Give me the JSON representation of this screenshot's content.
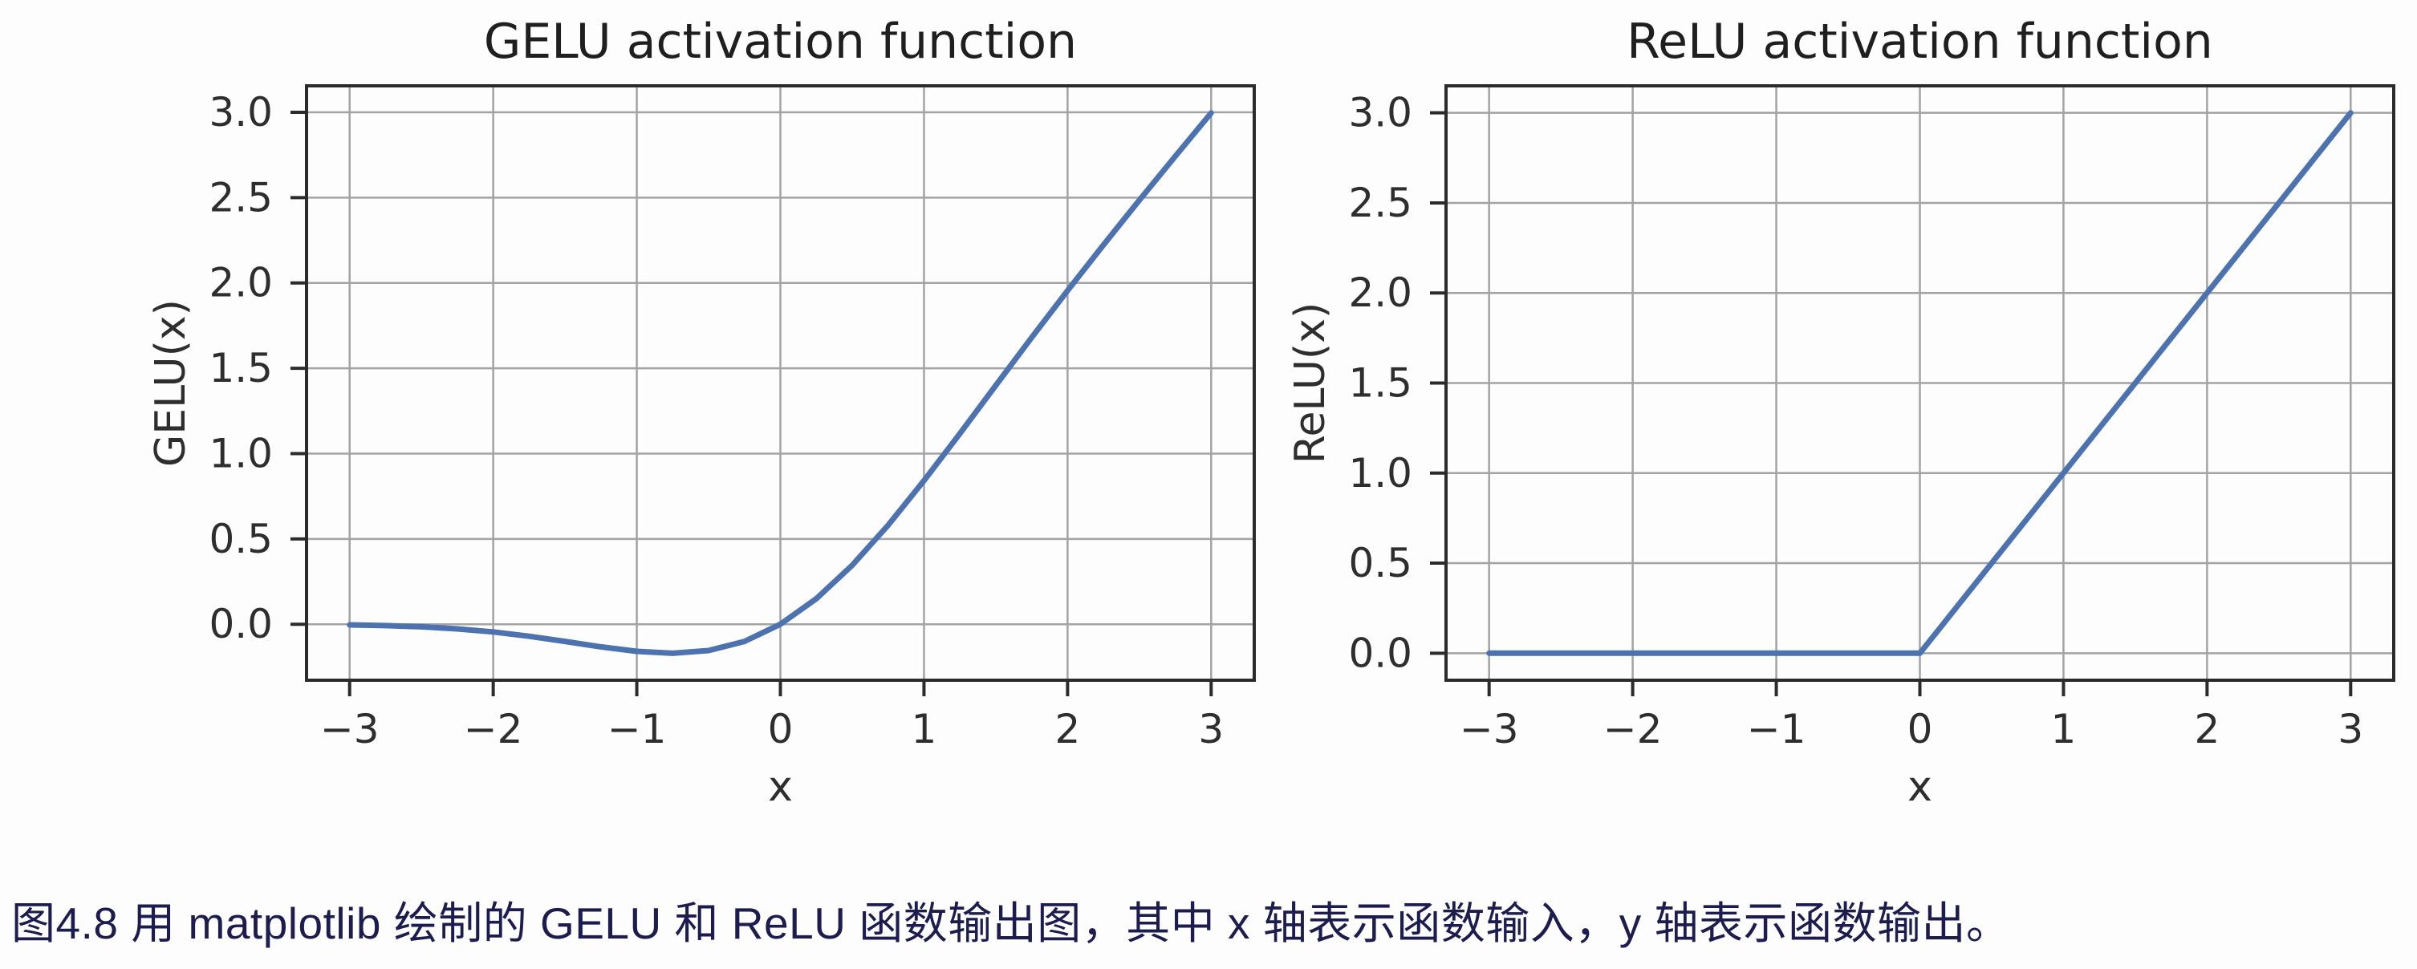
{
  "page": {
    "background": "#fdfdfd"
  },
  "caption": {
    "text": "图4.8 用 matplotlib 绘制的 GELU 和 ReLU 函数输出图，其中 x 轴表示函数输入，y 轴表示函数输出。",
    "color": "#1c1c4e"
  },
  "colors": {
    "line": "#4c72b0",
    "grid": "#a3a3a3",
    "spine": "#2b2b2b",
    "tick_label": "#2e2e2e",
    "title": "#1f1f1f"
  },
  "chart_data": [
    {
      "type": "line",
      "title": "GELU activation function",
      "xlabel": "x",
      "ylabel": "GELU(x)",
      "xlim": [
        -3.3,
        3.3
      ],
      "ylim": [
        -0.328,
        3.155
      ],
      "xticks": [
        -3,
        -2,
        -1,
        0,
        1,
        2,
        3
      ],
      "xtick_labels": [
        "−3",
        "−2",
        "−1",
        "0",
        "1",
        "2",
        "3"
      ],
      "yticks": [
        0.0,
        0.5,
        1.0,
        1.5,
        2.0,
        2.5,
        3.0
      ],
      "ytick_labels": [
        "0.0",
        "0.5",
        "1.0",
        "1.5",
        "2.0",
        "2.5",
        "3.0"
      ],
      "grid": true,
      "legend": "none",
      "series": [
        {
          "name": "GELU",
          "points": [
            [
              -3.0,
              -0.0037
            ],
            [
              -2.75,
              -0.0077
            ],
            [
              -2.5,
              -0.0151
            ],
            [
              -2.25,
              -0.0273
            ],
            [
              -2.0,
              -0.0452
            ],
            [
              -1.75,
              -0.0702
            ],
            [
              -1.5,
              -0.1004
            ],
            [
              -1.25,
              -0.1324
            ],
            [
              -1.0,
              -0.1587
            ],
            [
              -0.75,
              -0.1701
            ],
            [
              -0.5,
              -0.1543
            ],
            [
              -0.25,
              -0.1003
            ],
            [
              0.0,
              0.0
            ],
            [
              0.25,
              0.1497
            ],
            [
              0.5,
              0.3457
            ],
            [
              0.75,
              0.5799
            ],
            [
              1.0,
              0.8413
            ],
            [
              1.25,
              1.1176
            ],
            [
              1.5,
              1.3996
            ],
            [
              1.75,
              1.6798
            ],
            [
              2.0,
              1.9548
            ],
            [
              2.25,
              2.2227
            ],
            [
              2.5,
              2.4849
            ],
            [
              2.75,
              2.7423
            ],
            [
              3.0,
              2.9963
            ]
          ]
        }
      ]
    },
    {
      "type": "line",
      "title": "ReLU activation function",
      "xlabel": "x",
      "ylabel": "ReLU(x)",
      "xlim": [
        -3.3,
        3.3
      ],
      "ylim": [
        -0.15,
        3.15
      ],
      "xticks": [
        -3,
        -2,
        -1,
        0,
        1,
        2,
        3
      ],
      "xtick_labels": [
        "−3",
        "−2",
        "−1",
        "0",
        "1",
        "2",
        "3"
      ],
      "yticks": [
        0.0,
        0.5,
        1.0,
        1.5,
        2.0,
        2.5,
        3.0
      ],
      "ytick_labels": [
        "0.0",
        "0.5",
        "1.0",
        "1.5",
        "2.0",
        "2.5",
        "3.0"
      ],
      "grid": true,
      "legend": "none",
      "series": [
        {
          "name": "ReLU",
          "points": [
            [
              -3.0,
              0.0
            ],
            [
              -2.0,
              0.0
            ],
            [
              -1.0,
              0.0
            ],
            [
              0.0,
              0.0
            ],
            [
              1.0,
              1.0
            ],
            [
              2.0,
              2.0
            ],
            [
              3.0,
              3.0
            ]
          ]
        }
      ]
    }
  ]
}
